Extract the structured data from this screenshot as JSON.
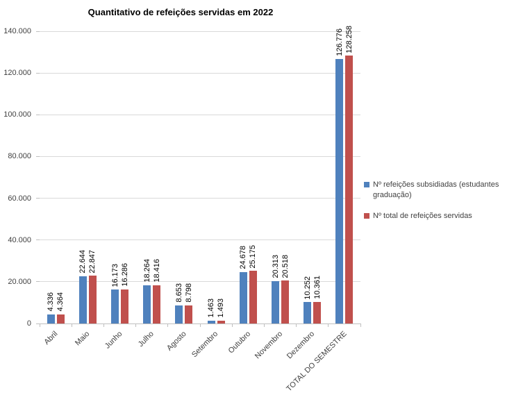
{
  "chart_data": {
    "type": "bar",
    "title": "Quantitativo de refeições servidas em 2022",
    "categories": [
      "Abril",
      "Maio",
      "Junho",
      "Julho",
      "Agosto",
      "Setembro",
      "Outubro",
      "Novembro",
      "Dezembro",
      "TOTAL DO SEMESTRE"
    ],
    "series": [
      {
        "name": "Nº refeições subsidiadas (estudantes graduação)",
        "color": "#4F81BD",
        "values": [
          4336,
          22644,
          16173,
          18264,
          8653,
          1463,
          24678,
          20313,
          10252,
          126776
        ],
        "labels": [
          "4.336",
          "22.644",
          "16.173",
          "18.264",
          "8.653",
          "1.463",
          "24.678",
          "20.313",
          "10.252",
          "126.776"
        ]
      },
      {
        "name": "Nº total de refeições servidas",
        "color": "#C0504D",
        "values": [
          4364,
          22847,
          16286,
          18416,
          8798,
          1493,
          25175,
          20518,
          10361,
          128258
        ],
        "labels": [
          "4.364",
          "22.847",
          "16.286",
          "18.416",
          "8.798",
          "1.493",
          "25.175",
          "20.518",
          "10.361",
          "128.258"
        ]
      }
    ],
    "y_axis": {
      "min": 0,
      "max": 140000,
      "step": 20000,
      "tick_labels": [
        "0",
        "20.000",
        "40.000",
        "60.000",
        "80.000",
        "100.000",
        "120.000",
        "140.000"
      ]
    },
    "grid": true,
    "legend_position": "right",
    "data_labels_rotation": "vertical",
    "x_labels_rotation": -45
  }
}
